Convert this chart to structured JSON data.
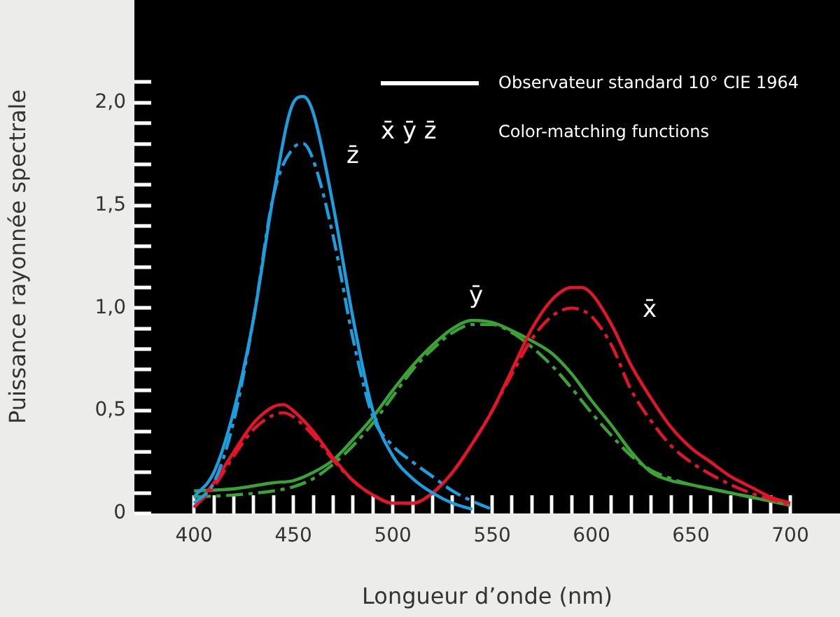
{
  "chart_data": {
    "type": "line",
    "xlabel": "Longueur d’onde (nm)",
    "ylabel": "Puissance rayonnée spectrale",
    "xlim": [
      370,
      725
    ],
    "ylim": [
      0,
      2.5
    ],
    "xticks": [
      {
        "value": 400,
        "label": "400"
      },
      {
        "value": 410,
        "label": null
      },
      {
        "value": 420,
        "label": null
      },
      {
        "value": 430,
        "label": null
      },
      {
        "value": 440,
        "label": null
      },
      {
        "value": 450,
        "label": "450"
      },
      {
        "value": 460,
        "label": null
      },
      {
        "value": 470,
        "label": null
      },
      {
        "value": 480,
        "label": null
      },
      {
        "value": 490,
        "label": null
      },
      {
        "value": 500,
        "label": "500"
      },
      {
        "value": 510,
        "label": null
      },
      {
        "value": 520,
        "label": null
      },
      {
        "value": 530,
        "label": null
      },
      {
        "value": 540,
        "label": null
      },
      {
        "value": 550,
        "label": "550"
      },
      {
        "value": 560,
        "label": null
      },
      {
        "value": 570,
        "label": null
      },
      {
        "value": 580,
        "label": null
      },
      {
        "value": 590,
        "label": null
      },
      {
        "value": 600,
        "label": "600"
      },
      {
        "value": 610,
        "label": null
      },
      {
        "value": 620,
        "label": null
      },
      {
        "value": 630,
        "label": null
      },
      {
        "value": 640,
        "label": null
      },
      {
        "value": 650,
        "label": "650"
      },
      {
        "value": 660,
        "label": null
      },
      {
        "value": 670,
        "label": null
      },
      {
        "value": 680,
        "label": null
      },
      {
        "value": 690,
        "label": null
      },
      {
        "value": 700,
        "label": "700"
      }
    ],
    "yticks": [
      0,
      {
        "value": 0.1,
        "label": null
      },
      {
        "value": 0.2,
        "label": null
      },
      {
        "value": 0.3,
        "label": null
      },
      {
        "value": 0.4,
        "label": null
      },
      {
        "value": 0.5,
        "label": "0,5"
      },
      {
        "value": 0.6,
        "label": null
      },
      {
        "value": 0.7,
        "label": null
      },
      {
        "value": 0.8,
        "label": null
      },
      {
        "value": 0.9,
        "label": null
      },
      {
        "value": 1,
        "label": "1,0"
      },
      {
        "value": 1.1,
        "label": null
      },
      {
        "value": 1.2,
        "label": null
      },
      {
        "value": 1.3,
        "label": null
      },
      {
        "value": 1.4,
        "label": null
      },
      {
        "value": 1.5,
        "label": "1,5"
      },
      {
        "value": 1.6,
        "label": null
      },
      {
        "value": 1.7,
        "label": null
      },
      {
        "value": 1.8,
        "label": null
      },
      {
        "value": 1.9,
        "label": null
      },
      {
        "value": 2,
        "label": "2,0"
      },
      {
        "value": 2.1,
        "label": null
      }
    ],
    "grid": false,
    "legend": false,
    "marker": "none",
    "series": [
      {
        "color": "#1a9fe0",
        "line_style": "solid",
        "x": [
          400,
          410,
          420,
          430,
          440,
          450,
          455,
          460,
          470,
          480,
          490,
          500,
          510,
          520,
          530,
          540
        ],
        "values": [
          0.08,
          0.2,
          0.5,
          0.95,
          1.55,
          2.0,
          2.03,
          1.95,
          1.5,
          0.95,
          0.5,
          0.28,
          0.17,
          0.1,
          0.05,
          0.02
        ]
      },
      {
        "color": "#1a9fe0",
        "line_style": "dashed",
        "x": [
          400,
          410,
          420,
          430,
          440,
          450,
          455,
          460,
          470,
          480,
          490,
          500,
          510,
          520,
          530,
          540,
          550
        ],
        "values": [
          0.05,
          0.15,
          0.45,
          0.95,
          1.55,
          1.78,
          1.8,
          1.72,
          1.35,
          0.85,
          0.47,
          0.33,
          0.25,
          0.18,
          0.11,
          0.06,
          0.02
        ]
      },
      {
        "color": "#e5142b",
        "line_style": "solid",
        "x": [
          400,
          410,
          420,
          430,
          440,
          445,
          450,
          460,
          470,
          480,
          490,
          500,
          510,
          520,
          530,
          540,
          550,
          560,
          570,
          580,
          590,
          595,
          600,
          610,
          620,
          630,
          640,
          650,
          660,
          670,
          680,
          690,
          700
        ],
        "values": [
          0.03,
          0.15,
          0.3,
          0.44,
          0.52,
          0.53,
          0.5,
          0.4,
          0.27,
          0.16,
          0.09,
          0.05,
          0.05,
          0.1,
          0.2,
          0.34,
          0.5,
          0.7,
          0.9,
          1.04,
          1.1,
          1.1,
          1.07,
          0.92,
          0.72,
          0.56,
          0.42,
          0.32,
          0.25,
          0.18,
          0.13,
          0.08,
          0.05
        ]
      },
      {
        "color": "#e5142b",
        "line_style": "dashed",
        "x": [
          400,
          410,
          420,
          430,
          440,
          445,
          450,
          460,
          470,
          480,
          490,
          500,
          510,
          520,
          530,
          540,
          550,
          560,
          570,
          580,
          590,
          595,
          600,
          610,
          620,
          630,
          640,
          650,
          660,
          670,
          680,
          690,
          700
        ],
        "values": [
          0.03,
          0.13,
          0.28,
          0.41,
          0.48,
          0.49,
          0.47,
          0.38,
          0.26,
          0.16,
          0.09,
          0.05,
          0.05,
          0.1,
          0.2,
          0.34,
          0.5,
          0.68,
          0.85,
          0.96,
          1.0,
          0.99,
          0.96,
          0.82,
          0.6,
          0.45,
          0.33,
          0.25,
          0.19,
          0.14,
          0.1,
          0.07,
          0.04
        ]
      },
      {
        "color": "#3aa335",
        "line_style": "solid",
        "x": [
          400,
          420,
          440,
          450,
          460,
          470,
          480,
          490,
          500,
          510,
          520,
          530,
          540,
          550,
          560,
          570,
          580,
          590,
          600,
          610,
          620,
          630,
          640,
          650,
          660,
          670,
          680,
          690,
          700
        ],
        "values": [
          0.11,
          0.12,
          0.15,
          0.16,
          0.2,
          0.26,
          0.36,
          0.47,
          0.6,
          0.72,
          0.82,
          0.9,
          0.94,
          0.93,
          0.89,
          0.84,
          0.78,
          0.68,
          0.55,
          0.43,
          0.3,
          0.2,
          0.16,
          0.14,
          0.12,
          0.1,
          0.08,
          0.06,
          0.04
        ]
      },
      {
        "color": "#3aa335",
        "line_style": "dashed",
        "x": [
          400,
          420,
          440,
          450,
          460,
          470,
          480,
          490,
          500,
          510,
          520,
          530,
          540,
          550,
          560,
          570,
          580,
          590,
          600,
          610,
          620,
          630,
          640,
          650,
          660,
          670,
          680,
          690,
          700
        ],
        "values": [
          0.08,
          0.09,
          0.11,
          0.13,
          0.17,
          0.24,
          0.33,
          0.44,
          0.57,
          0.7,
          0.8,
          0.88,
          0.92,
          0.92,
          0.88,
          0.81,
          0.72,
          0.61,
          0.49,
          0.38,
          0.28,
          0.21,
          0.17,
          0.14,
          0.12,
          0.1,
          0.08,
          0.06,
          0.04
        ]
      }
    ],
    "annotations": [
      "Observateur standard 10° CIE 1964",
      "x̄ ȳ z̄",
      "Color-matching functions",
      "z̄",
      "ȳ",
      "x̄"
    ]
  }
}
